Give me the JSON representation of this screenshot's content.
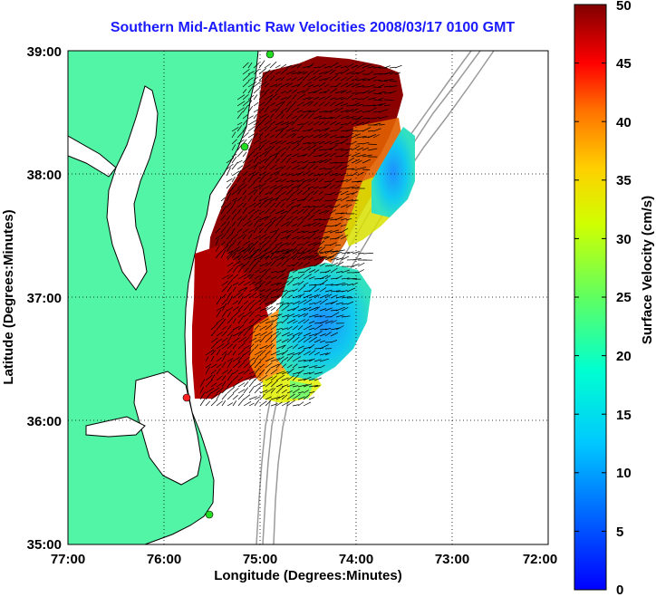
{
  "title": "Southern Mid-Atlantic Raw Velocities 2008/03/17 0100 GMT",
  "xlabel": "Longitude (Degrees:Minutes)",
  "ylabel": "Latitude (Degrees:Minutes)",
  "colorbar_label": "Surface Velocity (cm/s)",
  "colors": {
    "land": "#52f5a5",
    "coast": "#000000",
    "bathymetry": "#9a9a9a",
    "title": "#1a1aff",
    "station": "#22dd22",
    "station_red": "#ff2222"
  },
  "chart_data": {
    "type": "heatmap",
    "xlim": [
      -77,
      -72
    ],
    "ylim": [
      35,
      39
    ],
    "x_ticks": [
      "77:00",
      "76:00",
      "75:00",
      "74:00",
      "73:00",
      "72:00"
    ],
    "y_ticks": [
      "39:00",
      "38:00",
      "37:00",
      "36:00",
      "35:00"
    ],
    "grid": "dotted",
    "colorbar": {
      "min": 0,
      "max": 50,
      "ticks": [
        "50",
        "45",
        "40",
        "35",
        "30",
        "25",
        "20",
        "15",
        "10",
        "5",
        "0"
      ],
      "colormap": "jet"
    },
    "stations": [
      {
        "lon": -75.1,
        "lat": 38.97,
        "color": "green"
      },
      {
        "lon": -75.15,
        "lat": 38.22,
        "color": "green"
      },
      {
        "lon": -75.75,
        "lat": 36.18,
        "color": "red"
      },
      {
        "lon": -75.55,
        "lat": 35.23,
        "color": "green"
      }
    ]
  }
}
